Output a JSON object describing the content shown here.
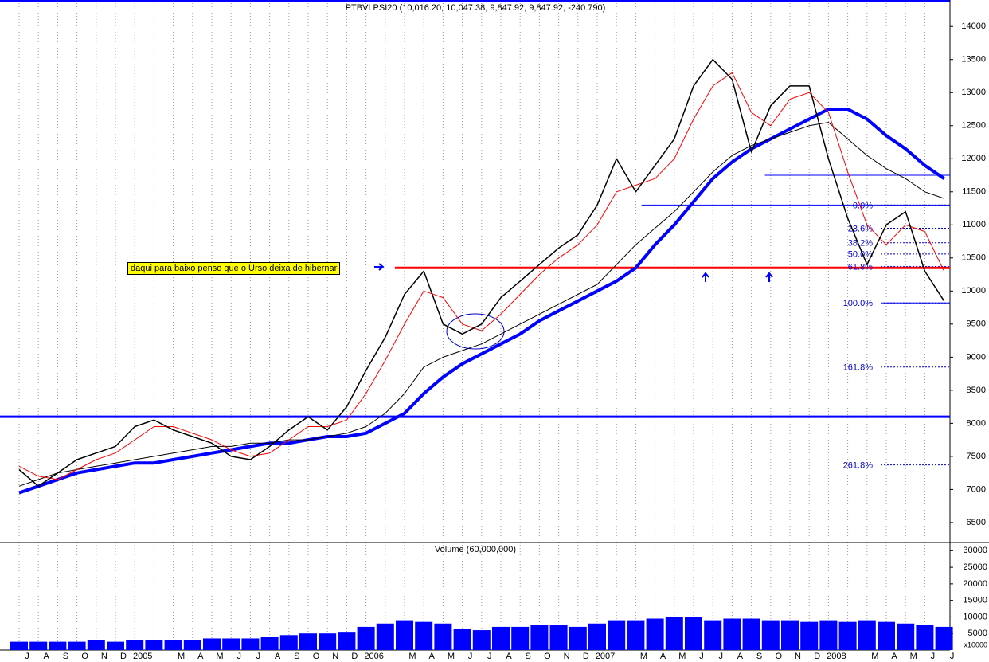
{
  "chart_data": [
    {
      "type": "line",
      "title": "PTBVLPSI20 (10,016.20, 10,047.38, 9,847.92, 9,847.92, -240.790)",
      "ylim": [
        6210,
        14400
      ],
      "yticks": [
        6500,
        7000,
        7500,
        8000,
        8500,
        9000,
        9500,
        10000,
        10500,
        11000,
        11500,
        12000,
        12500,
        13000,
        13500,
        14000
      ],
      "series": [
        {
          "color": "#0000ff",
          "line_width": 4,
          "values": [
            6950,
            7050,
            7150,
            7250,
            7300,
            7350,
            7400,
            7400,
            7450,
            7500,
            7550,
            7600,
            7650,
            7700,
            7700,
            7750,
            7800,
            7800,
            7850,
            8000,
            8150,
            8450,
            8700,
            8900,
            9050,
            9200,
            9350,
            9550,
            9700,
            9850,
            10000,
            10150,
            10350,
            10700,
            11000,
            11350,
            11700,
            11950,
            12150,
            12300,
            12450,
            12600,
            12750,
            12750,
            12600,
            12350,
            12150,
            11900,
            11700
          ]
        },
        {
          "color": "#000000",
          "line_width": 1,
          "values": [
            7050,
            7150,
            7250,
            7300,
            7350,
            7400,
            7450,
            7500,
            7550,
            7600,
            7650,
            7650,
            7700,
            7700,
            7750,
            7750,
            7800,
            7850,
            7950,
            8150,
            8450,
            8850,
            9000,
            9100,
            9200,
            9350,
            9500,
            9650,
            9800,
            9950,
            10100,
            10400,
            10700,
            10950,
            11200,
            11500,
            11800,
            12050,
            12200,
            12300,
            12400,
            12500,
            12550,
            12300,
            12050,
            11850,
            11700,
            11500,
            11400
          ]
        },
        {
          "color": "#ff0000",
          "line_width": 1,
          "values": [
            7350,
            7200,
            7150,
            7300,
            7450,
            7550,
            7750,
            7950,
            7950,
            7850,
            7750,
            7600,
            7500,
            7550,
            7750,
            7950,
            7950,
            8050,
            8450,
            8950,
            9500,
            10000,
            9900,
            9500,
            9400,
            9650,
            9950,
            10250,
            10500,
            10700,
            11000,
            11500,
            11600,
            11700,
            12000,
            12600,
            13100,
            13300,
            12700,
            12500,
            12900,
            13000,
            12700,
            11800,
            11000,
            10700,
            11000,
            10900,
            10300
          ]
        },
        {
          "color": "#000000",
          "line_width": 1.5,
          "values": [
            7300,
            7050,
            7250,
            7450,
            7550,
            7650,
            7950,
            8050,
            7900,
            7800,
            7700,
            7500,
            7450,
            7650,
            7900,
            8100,
            7900,
            8250,
            8800,
            9300,
            9950,
            10300,
            9500,
            9350,
            9500,
            9900,
            10150,
            10400,
            10650,
            10850,
            11300,
            12000,
            11500,
            11900,
            12300,
            13100,
            13500,
            13200,
            12100,
            12800,
            13100,
            13100,
            12000,
            11100,
            10400,
            11000,
            11200,
            10300,
            9850
          ]
        }
      ],
      "hlines": [
        {
          "value": 8100,
          "color": "#0000ff",
          "line_width": 3,
          "start": -1
        },
        {
          "value": 10350,
          "color": "#ff0000",
          "line_width": 3,
          "start": 19.5
        },
        {
          "value": 11750,
          "color": "#0000ff",
          "line_width": 1,
          "start": 38.7
        },
        {
          "value": 11300,
          "color": "#0000ff",
          "line_width": 1,
          "start": 32.3
        },
        {
          "value": 9820,
          "color": "#0000ff",
          "line_width": 1,
          "start": 44.8
        }
      ],
      "fib_levels": [
        {
          "label": "0.0%",
          "value": 11300
        },
        {
          "label": "23.6%",
          "value": 10950
        },
        {
          "label": "38.2%",
          "value": 10730
        },
        {
          "label": "50.0%",
          "value": 10560
        },
        {
          "label": "61.8%",
          "value": 10370
        },
        {
          "label": "100.0%",
          "value": 9820
        },
        {
          "label": "161.8%",
          "value": 8850
        },
        {
          "label": "261.8%",
          "value": 7370
        }
      ],
      "annotation": "daqui para baixo penso que o Urso deixa de hibernar"
    },
    {
      "type": "bar",
      "title": "Volume (60,000,000)",
      "unit_label": "x10000",
      "color": "#0000ff",
      "ylim": [
        0,
        32000
      ],
      "yticks": [
        5000,
        10000,
        15000,
        20000,
        25000,
        30000
      ],
      "categories": [
        "J",
        "A",
        "S",
        "O",
        "N",
        "D",
        "2005",
        null,
        "M",
        "A",
        "M",
        "J",
        "J",
        "A",
        "S",
        "O",
        "N",
        "D",
        "2006",
        null,
        "M",
        "A",
        "M",
        "J",
        "J",
        "A",
        "S",
        "O",
        "N",
        "D",
        "2007",
        null,
        "M",
        "A",
        "M",
        "J",
        "J",
        "A",
        "S",
        "O",
        "N",
        "D",
        "2008",
        null,
        "M",
        "A",
        "M",
        "J",
        "J"
      ],
      "values": [
        2500,
        2500,
        2500,
        2500,
        3000,
        2500,
        3000,
        3000,
        3000,
        3000,
        3500,
        3500,
        3500,
        4000,
        4500,
        5000,
        5000,
        5500,
        7000,
        8000,
        9000,
        8500,
        8000,
        6500,
        6000,
        7000,
        7000,
        7500,
        7500,
        7000,
        8000,
        9000,
        9000,
        9500,
        10000,
        10000,
        9000,
        9500,
        9500,
        9000,
        9000,
        8500,
        9000,
        8500,
        9000,
        8500,
        8000,
        7500,
        7000
      ]
    }
  ]
}
